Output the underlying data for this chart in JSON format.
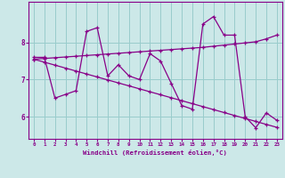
{
  "xlabel": "Windchill (Refroidissement éolien,°C)",
  "background_color": "#cce8e8",
  "plot_bg_color": "#cce8e8",
  "line_color": "#880088",
  "grid_color": "#99cccc",
  "hours": [
    0,
    1,
    2,
    3,
    4,
    5,
    6,
    7,
    8,
    9,
    10,
    11,
    12,
    13,
    14,
    15,
    16,
    17,
    18,
    19,
    20,
    21,
    22,
    23
  ],
  "line_data": [
    7.6,
    7.6,
    6.5,
    6.6,
    6.7,
    8.3,
    8.4,
    7.1,
    7.4,
    7.1,
    7.0,
    7.7,
    7.5,
    6.9,
    6.3,
    6.2,
    8.5,
    8.7,
    8.2,
    8.2,
    6.0,
    5.7,
    6.1,
    5.9
  ],
  "line_up": [
    7.55,
    7.57,
    7.59,
    7.61,
    7.63,
    7.65,
    7.67,
    7.69,
    7.71,
    7.73,
    7.75,
    7.77,
    7.79,
    7.81,
    7.83,
    7.85,
    7.87,
    7.9,
    7.93,
    7.96,
    7.99,
    8.02,
    8.1,
    8.2
  ],
  "line_down": [
    7.55,
    7.47,
    7.39,
    7.31,
    7.23,
    7.15,
    7.07,
    6.99,
    6.91,
    6.83,
    6.75,
    6.67,
    6.59,
    6.51,
    6.43,
    6.35,
    6.27,
    6.19,
    6.11,
    6.03,
    5.95,
    5.87,
    5.79,
    5.71
  ],
  "ylim": [
    5.4,
    9.1
  ],
  "yticks": [
    6,
    7,
    8
  ],
  "xticks": [
    0,
    1,
    2,
    3,
    4,
    5,
    6,
    7,
    8,
    9,
    10,
    11,
    12,
    13,
    14,
    15,
    16,
    17,
    18,
    19,
    20,
    21,
    22,
    23
  ]
}
